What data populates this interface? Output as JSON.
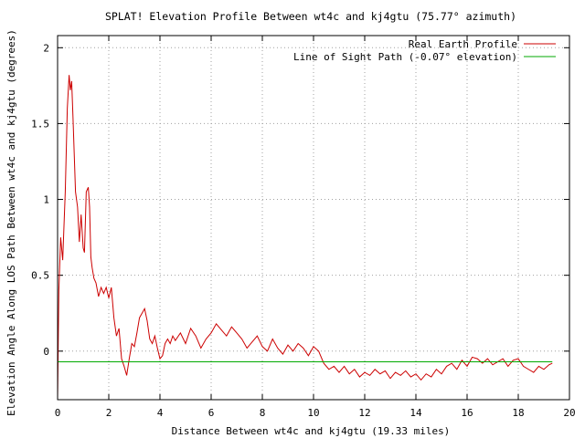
{
  "chart_data": {
    "type": "line",
    "title": "SPLAT! Elevation Profile Between wt4c and kj4gtu (75.77° azimuth)",
    "xlabel": "Distance Between wt4c and kj4gtu (19.33 miles)",
    "ylabel": "Elevation Angle Along LOS Path Between wt4c and kj4gtu (degrees)",
    "xlim": [
      0,
      20
    ],
    "ylim": [
      -0.32,
      2.08
    ],
    "x_ticks": [
      0,
      2,
      4,
      6,
      8,
      10,
      12,
      14,
      16,
      18,
      20
    ],
    "y_ticks": [
      0,
      0.5,
      1,
      1.5,
      2
    ],
    "x_tick_labels": [
      "0",
      "2",
      "4",
      "6",
      "8",
      "10",
      "12",
      "14",
      "16",
      "18",
      "20"
    ],
    "y_tick_labels": [
      "0",
      "0.5",
      "1",
      "1.5",
      "2"
    ],
    "grid": true,
    "legend_position": "top-right",
    "series": [
      {
        "name": "Real Earth Profile",
        "color": "#cc0000",
        "x": [
          0.0,
          0.05,
          0.12,
          0.2,
          0.3,
          0.38,
          0.45,
          0.5,
          0.55,
          0.6,
          0.65,
          0.7,
          0.78,
          0.85,
          0.92,
          1.0,
          1.05,
          1.12,
          1.2,
          1.25,
          1.3,
          1.35,
          1.42,
          1.5,
          1.6,
          1.7,
          1.8,
          1.9,
          2.0,
          2.1,
          2.15,
          2.2,
          2.3,
          2.4,
          2.5,
          2.6,
          2.7,
          2.8,
          2.9,
          3.0,
          3.1,
          3.2,
          3.3,
          3.4,
          3.5,
          3.6,
          3.7,
          3.8,
          3.9,
          4.0,
          4.1,
          4.2,
          4.3,
          4.4,
          4.5,
          4.6,
          4.8,
          5.0,
          5.2,
          5.4,
          5.6,
          5.8,
          6.0,
          6.2,
          6.4,
          6.6,
          6.8,
          7.0,
          7.2,
          7.4,
          7.6,
          7.8,
          8.0,
          8.2,
          8.4,
          8.6,
          8.8,
          9.0,
          9.2,
          9.4,
          9.6,
          9.8,
          10.0,
          10.2,
          10.4,
          10.6,
          10.8,
          11.0,
          11.2,
          11.4,
          11.6,
          11.8,
          12.0,
          12.2,
          12.4,
          12.6,
          12.8,
          13.0,
          13.2,
          13.4,
          13.6,
          13.8,
          14.0,
          14.2,
          14.4,
          14.6,
          14.8,
          15.0,
          15.2,
          15.4,
          15.6,
          15.8,
          16.0,
          16.2,
          16.4,
          16.6,
          16.8,
          17.0,
          17.2,
          17.4,
          17.6,
          17.8,
          18.0,
          18.2,
          18.4,
          18.6,
          18.8,
          19.0,
          19.2,
          19.33
        ],
        "y": [
          -0.32,
          0.4,
          0.75,
          0.6,
          1.05,
          1.6,
          1.82,
          1.72,
          1.78,
          1.55,
          1.3,
          1.05,
          0.95,
          0.72,
          0.9,
          0.68,
          0.65,
          1.05,
          1.08,
          0.95,
          0.62,
          0.55,
          0.48,
          0.45,
          0.36,
          0.42,
          0.38,
          0.42,
          0.35,
          0.42,
          0.32,
          0.22,
          0.1,
          0.15,
          -0.05,
          -0.1,
          -0.16,
          -0.05,
          0.05,
          0.03,
          0.12,
          0.22,
          0.25,
          0.28,
          0.2,
          0.08,
          0.05,
          0.1,
          0.02,
          -0.05,
          -0.03,
          0.05,
          0.08,
          0.05,
          0.1,
          0.07,
          0.12,
          0.05,
          0.15,
          0.1,
          0.02,
          0.08,
          0.12,
          0.18,
          0.14,
          0.1,
          0.16,
          0.12,
          0.08,
          0.02,
          0.06,
          0.1,
          0.03,
          0.0,
          0.08,
          0.02,
          -0.02,
          0.04,
          0.0,
          0.05,
          0.02,
          -0.03,
          0.03,
          0.0,
          -0.08,
          -0.12,
          -0.1,
          -0.14,
          -0.1,
          -0.15,
          -0.12,
          -0.17,
          -0.14,
          -0.16,
          -0.12,
          -0.15,
          -0.13,
          -0.18,
          -0.14,
          -0.16,
          -0.13,
          -0.17,
          -0.15,
          -0.19,
          -0.15,
          -0.17,
          -0.12,
          -0.15,
          -0.1,
          -0.08,
          -0.12,
          -0.06,
          -0.1,
          -0.04,
          -0.05,
          -0.08,
          -0.05,
          -0.09,
          -0.07,
          -0.05,
          -0.1,
          -0.06,
          -0.05,
          -0.1,
          -0.12,
          -0.14,
          -0.1,
          -0.12,
          -0.09,
          -0.08
        ]
      },
      {
        "name": "Line of Sight Path (-0.07° elevation)",
        "color": "#00aa00",
        "x": [
          0.0,
          19.33
        ],
        "y": [
          -0.07,
          -0.07
        ]
      }
    ]
  }
}
